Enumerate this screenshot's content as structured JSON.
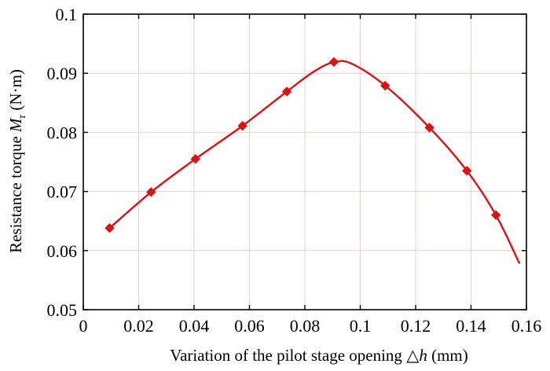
{
  "chart_data": {
    "type": "line",
    "title": "",
    "xlabel": {
      "prefix": "Variation of the pilot stage opening ",
      "symbol": "△",
      "var": "h",
      "suffix": " (mm)"
    },
    "ylabel": {
      "prefix": "Resistance torque ",
      "var": "M",
      "sub": "r",
      "suffix": " (N·m)"
    },
    "xlim": [
      0,
      0.16
    ],
    "ylim": [
      0.05,
      0.1
    ],
    "xticks": [
      0,
      0.02,
      0.04,
      0.06,
      0.08,
      0.1,
      0.12,
      0.14,
      0.16
    ],
    "xtick_labels": [
      "0",
      "0.02",
      "0.04",
      "0.06",
      "0.08",
      "0.1",
      "0.12",
      "0.14",
      "0.16"
    ],
    "yticks": [
      0.05,
      0.06,
      0.07,
      0.08,
      0.09,
      0.1
    ],
    "ytick_labels": [
      "0.05",
      "0.06",
      "0.07",
      "0.08",
      "0.09",
      "0.1"
    ],
    "grid": true,
    "series": [
      {
        "color": "#dd1111",
        "marker": "diamond",
        "points": [
          {
            "x": 0.0095,
            "y": 0.0638
          },
          {
            "x": 0.0245,
            "y": 0.0699
          },
          {
            "x": 0.0405,
            "y": 0.0755
          },
          {
            "x": 0.0575,
            "y": 0.0811
          },
          {
            "x": 0.0735,
            "y": 0.0869
          },
          {
            "x": 0.0905,
            "y": 0.0919
          },
          {
            "x": 0.109,
            "y": 0.0879
          },
          {
            "x": 0.125,
            "y": 0.0808
          },
          {
            "x": 0.1385,
            "y": 0.0735
          },
          {
            "x": 0.149,
            "y": 0.066
          }
        ],
        "curve": [
          {
            "x": 0.0095,
            "y": 0.0638
          },
          {
            "x": 0.0245,
            "y": 0.0699
          },
          {
            "x": 0.0405,
            "y": 0.0755
          },
          {
            "x": 0.0575,
            "y": 0.0811
          },
          {
            "x": 0.0735,
            "y": 0.0869
          },
          {
            "x": 0.083,
            "y": 0.0902
          },
          {
            "x": 0.0905,
            "y": 0.0919
          },
          {
            "x": 0.097,
            "y": 0.0916
          },
          {
            "x": 0.109,
            "y": 0.0879
          },
          {
            "x": 0.125,
            "y": 0.0808
          },
          {
            "x": 0.1385,
            "y": 0.0735
          },
          {
            "x": 0.149,
            "y": 0.066
          },
          {
            "x": 0.1575,
            "y": 0.0578
          }
        ]
      }
    ]
  }
}
